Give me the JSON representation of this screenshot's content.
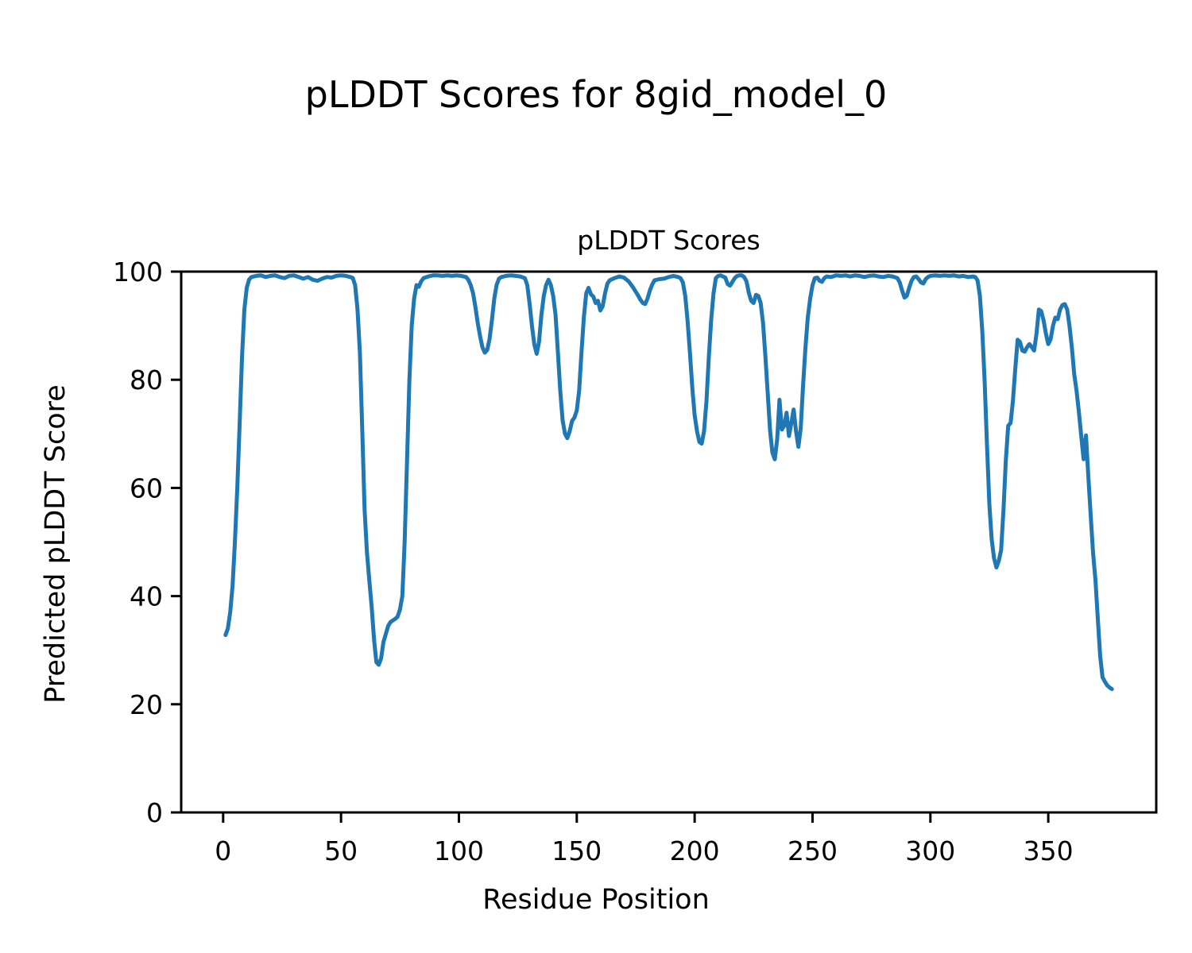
{
  "figure_title": "pLDDT Scores for 8gid_model_0",
  "chart_data": {
    "type": "line",
    "title": "pLDDT Scores",
    "xlabel": "Residue Position",
    "ylabel": "Predicted pLDDT Score",
    "xlim": [
      -17.8,
      395.8
    ],
    "ylim": [
      0,
      100
    ],
    "x_ticks": [
      0,
      50,
      100,
      150,
      200,
      250,
      300,
      350
    ],
    "y_ticks": [
      0,
      20,
      40,
      60,
      80,
      100
    ],
    "grid": false,
    "legend": "none",
    "line_color": "#1f77b4",
    "x": [
      1,
      2,
      3,
      4,
      5,
      6,
      7,
      8,
      9,
      10,
      11,
      12,
      14,
      16,
      18,
      20,
      22,
      24,
      26,
      28,
      30,
      32,
      34,
      36,
      38,
      40,
      42,
      44,
      46,
      48,
      50,
      52,
      54,
      55,
      56,
      57,
      58,
      59,
      60,
      61,
      62,
      63,
      64,
      65,
      66,
      67,
      68,
      69,
      70,
      71,
      72,
      73,
      74,
      75,
      76,
      77,
      78,
      79,
      80,
      81,
      82,
      83,
      84,
      85,
      87,
      89,
      91,
      93,
      95,
      97,
      99,
      101,
      103,
      104,
      105,
      106,
      107,
      108,
      109,
      110,
      111,
      112,
      113,
      114,
      115,
      116,
      117,
      118,
      120,
      122,
      124,
      126,
      128,
      129,
      130,
      131,
      132,
      133,
      134,
      135,
      136,
      137,
      138,
      139,
      140,
      141,
      142,
      143,
      144,
      145,
      146,
      147,
      148,
      149,
      150,
      151,
      152,
      153,
      154,
      155,
      156,
      157,
      158,
      159,
      160,
      161,
      162,
      163,
      164,
      166,
      168,
      170,
      172,
      174,
      176,
      177,
      178,
      179,
      180,
      181,
      182,
      183,
      185,
      187,
      189,
      191,
      193,
      194,
      195,
      196,
      197,
      198,
      199,
      200,
      201,
      202,
      203,
      204,
      205,
      206,
      207,
      208,
      209,
      210,
      211,
      212,
      213,
      214,
      215,
      216,
      217,
      218,
      219,
      220,
      221,
      222,
      223,
      224,
      225,
      226,
      227,
      228,
      229,
      230,
      231,
      232,
      233,
      234,
      235,
      236,
      237,
      238,
      239,
      240,
      241,
      242,
      243,
      244,
      245,
      246,
      247,
      248,
      249,
      250,
      251,
      252,
      253,
      254,
      255,
      256,
      258,
      260,
      262,
      264,
      266,
      268,
      270,
      272,
      274,
      276,
      278,
      280,
      282,
      284,
      286,
      287,
      288,
      289,
      290,
      291,
      292,
      293,
      294,
      295,
      296,
      297,
      298,
      299,
      300,
      302,
      304,
      306,
      308,
      310,
      312,
      314,
      316,
      318,
      319,
      320,
      321,
      322,
      323,
      324,
      325,
      326,
      327,
      328,
      329,
      330,
      331,
      332,
      333,
      334,
      335,
      336,
      337,
      338,
      339,
      340,
      341,
      342,
      343,
      344,
      345,
      346,
      347,
      348,
      349,
      350,
      351,
      352,
      353,
      354,
      355,
      356,
      357,
      358,
      359,
      360,
      361,
      362,
      363,
      364,
      365,
      366,
      367,
      368,
      369,
      370,
      371,
      372,
      373,
      374,
      375,
      376,
      377
    ],
    "y": [
      32.8,
      34,
      37,
      42,
      50,
      60,
      72,
      84,
      93,
      97,
      98.5,
      99,
      99.2,
      99.3,
      99,
      99.2,
      99.3,
      99,
      98.8,
      99.2,
      99.3,
      99,
      98.7,
      99,
      98.5,
      98.3,
      98.7,
      99,
      98.9,
      99.2,
      99.3,
      99.2,
      99,
      98.8,
      97.5,
      93,
      85,
      71,
      56,
      48,
      43,
      38,
      32,
      27.8,
      27.3,
      28.5,
      31.5,
      33,
      34.5,
      35.2,
      35.5,
      35.8,
      36.2,
      37.5,
      40,
      50,
      65,
      80,
      90,
      95,
      97.5,
      97.2,
      98.2,
      98.8,
      99.1,
      99.3,
      99.3,
      99.2,
      99.3,
      99.2,
      99.3,
      99.2,
      99,
      98.5,
      97.5,
      96,
      93.5,
      90.5,
      88,
      86,
      85,
      85.5,
      87.5,
      91,
      95,
      97.5,
      98.7,
      99,
      99.2,
      99.3,
      99.2,
      99.1,
      98.8,
      97.5,
      94,
      90,
      86.5,
      84.8,
      87,
      92,
      95.5,
      97.5,
      98.5,
      97.5,
      95.5,
      92,
      85,
      78,
      72.5,
      70,
      69.2,
      70.5,
      72.4,
      73,
      74.3,
      78,
      85,
      91.5,
      96,
      97,
      95.8,
      95.4,
      94.2,
      94.6,
      92.8,
      93.6,
      96,
      97.8,
      98.4,
      98.8,
      99.1,
      98.9,
      98.2,
      97,
      95.6,
      94.8,
      94.2,
      94,
      95,
      96.5,
      97.6,
      98.4,
      98.6,
      98.7,
      99,
      99.2,
      99,
      98.8,
      98,
      95.5,
      91,
      85,
      78.5,
      73.5,
      70.5,
      68.5,
      68.2,
      70.5,
      76,
      84,
      91,
      96,
      98.8,
      99.2,
      99.3,
      99.1,
      98.9,
      97.7,
      97.4,
      98.1,
      98.8,
      99.2,
      99.3,
      99.3,
      99,
      98.2,
      96,
      94.6,
      94.2,
      95.7,
      95.5,
      94.2,
      90.5,
      84.5,
      77.5,
      70.5,
      66.5,
      65.3,
      69,
      76.3,
      70.8,
      71.5,
      73.9,
      69.6,
      72,
      74.5,
      70.5,
      67.6,
      71,
      79,
      86,
      91.5,
      95,
      97.5,
      98.8,
      98.9,
      98.3,
      98.1,
      98.8,
      99.1,
      99,
      99.3,
      99.2,
      99.3,
      99.1,
      99.3,
      99.2,
      99,
      99.2,
      99.3,
      99.1,
      99,
      99.2,
      99.1,
      98.8,
      98,
      96.5,
      95.2,
      95.5,
      97,
      98.3,
      99,
      99.1,
      98.6,
      98,
      97.8,
      98.6,
      99,
      99.2,
      99.3,
      99.2,
      99.3,
      99.2,
      99.3,
      99.1,
      99.2,
      99,
      99.1,
      99,
      98.4,
      95.5,
      89,
      80,
      68,
      57,
      50.5,
      47,
      45.3,
      46.5,
      48.5,
      56,
      65,
      71.5,
      72,
      76,
      82,
      87.4,
      87,
      85.4,
      85.2,
      86,
      86.6,
      86,
      85.4,
      88.5,
      93,
      92.7,
      91,
      88.5,
      86.6,
      87.5,
      90,
      91.5,
      91.2,
      93,
      93.8,
      94,
      93,
      90,
      86,
      81,
      78,
      74,
      69.5,
      65.3,
      69.7,
      62,
      55,
      48,
      43,
      36,
      29,
      25,
      24.2,
      23.5,
      23.1,
      22.8
    ]
  }
}
